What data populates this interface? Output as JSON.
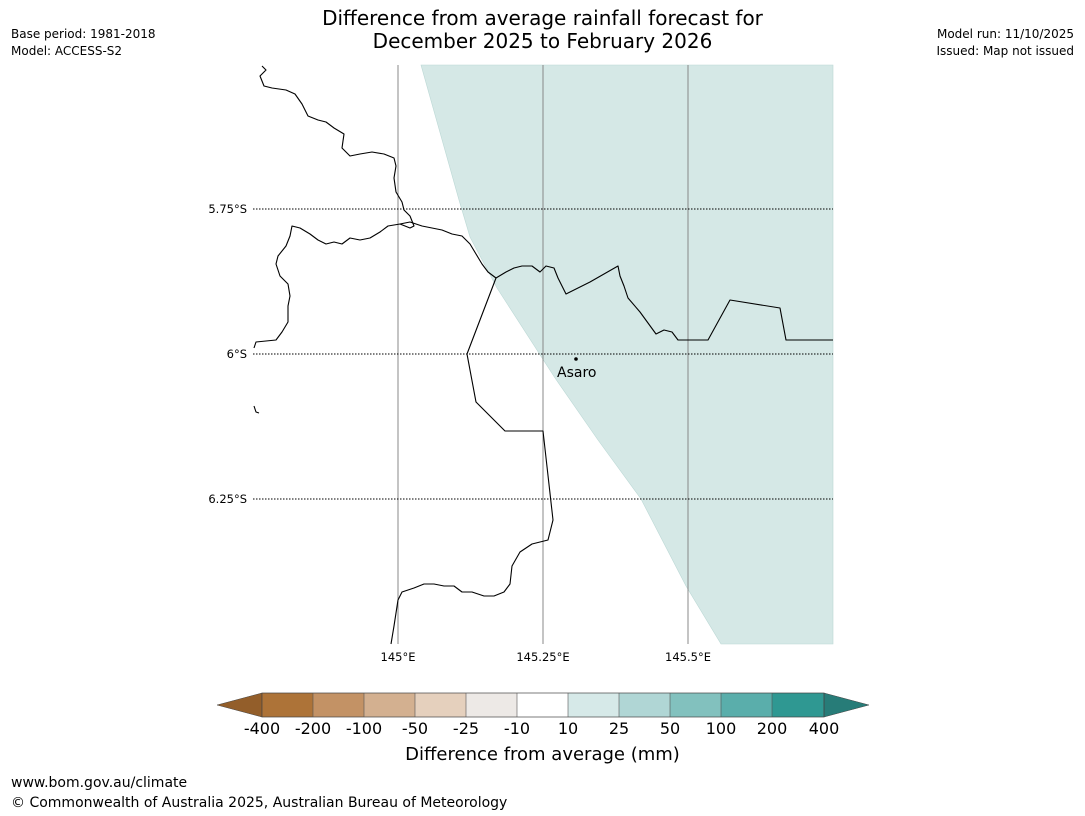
{
  "title_line1": "Difference from average rainfall forecast for",
  "title_line2": "December 2025 to February 2026",
  "base_period": "Base period: 1981-2018",
  "model": "Model: ACCESS-S2",
  "model_run": "Model run: 11/10/2025",
  "issued": "Issued: Map not issued",
  "lat_labels": [
    "5.75°S",
    "6°S",
    "6.25°S"
  ],
  "lon_labels": [
    "145°E",
    "145.25°E",
    "145.5°E"
  ],
  "place": "Asaro",
  "colors": {
    "shaded_region": "#d5e8e6",
    "coastline": "#000000",
    "gridline": "#888888"
  },
  "colorbar": {
    "title": "Difference from average (mm)",
    "ticks": [
      "-400",
      "-200",
      "-100",
      "-50",
      "-25",
      "-10",
      "10",
      "25",
      "50",
      "100",
      "200",
      "400"
    ],
    "colors": [
      "#935e2a",
      "#ad7338",
      "#c39265",
      "#d3b090",
      "#e5d0bd",
      "#ede9e6",
      "#ffffff",
      "#d6e9e8",
      "#b0d6d5",
      "#82c1be",
      "#5aaeab",
      "#2f9892",
      "#277c78"
    ]
  },
  "footer_url": "www.bom.gov.au/climate",
  "footer_copyright": "© Commonwealth of Australia 2025, Australian Bureau of Meteorology"
}
